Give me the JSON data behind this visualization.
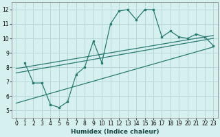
{
  "xlabel": "Humidex (Indice chaleur)",
  "bg_color": "#d6f0f0",
  "grid_color": "#b8d8d8",
  "line_color": "#2a7a70",
  "xlim": [
    -0.5,
    23.5
  ],
  "ylim": [
    4.5,
    12.5
  ],
  "xticks": [
    0,
    1,
    2,
    3,
    4,
    5,
    6,
    7,
    8,
    9,
    10,
    11,
    12,
    13,
    14,
    15,
    16,
    17,
    18,
    19,
    20,
    21,
    22,
    23
  ],
  "yticks": [
    5,
    6,
    7,
    8,
    9,
    10,
    11,
    12
  ],
  "main_x": [
    1,
    2,
    3,
    4,
    5,
    6,
    7,
    8,
    9,
    10,
    11,
    12,
    13,
    14,
    15,
    16,
    17,
    18,
    19,
    20,
    21,
    22,
    23
  ],
  "main_y": [
    8.3,
    6.9,
    6.9,
    5.4,
    5.2,
    5.6,
    7.5,
    8.0,
    9.8,
    8.3,
    11.0,
    11.9,
    12.0,
    11.3,
    12.0,
    12.0,
    10.1,
    10.5,
    10.1,
    10.0,
    10.3,
    10.1,
    9.5
  ],
  "line1_x": [
    0,
    23
  ],
  "line1_y": [
    5.5,
    9.4
  ],
  "line2_x": [
    0,
    23
  ],
  "line2_y": [
    7.6,
    10.0
  ],
  "line3_x": [
    0,
    23
  ],
  "line3_y": [
    7.9,
    10.2
  ]
}
